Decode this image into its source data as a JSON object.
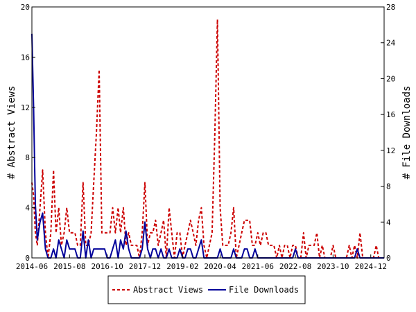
{
  "chart_data": {
    "type": "line",
    "title": "",
    "xlabel": "",
    "ylabel_left": "# Abstract Views",
    "ylabel_right": "# File Downloads",
    "x_tick_labels": [
      "2014-06",
      "2015-08",
      "2016-10",
      "2017-12",
      "2019-02",
      "2020-04",
      "2021-06",
      "2022-08",
      "2023-10",
      "2024-12"
    ],
    "x_range": [
      "2014-06",
      "2025-05"
    ],
    "y_left": {
      "range": [
        0,
        20
      ],
      "ticks": [
        "0",
        "4",
        "8",
        "12",
        "16",
        "20"
      ]
    },
    "y_right": {
      "range": [
        0,
        28
      ],
      "ticks": [
        "0",
        "4",
        "8",
        "12",
        "16",
        "20",
        "24",
        "28"
      ]
    },
    "legend": {
      "placement": "bottom-center"
    },
    "grid": false,
    "series": [
      {
        "name": "Abstract Views",
        "axis": "left",
        "color": "#cc0000",
        "style": "dashed",
        "points": [
          [
            "2014-06-01",
            6
          ],
          [
            "2014-06-20",
            5
          ],
          [
            "2014-07-10",
            2
          ],
          [
            "2014-08-01",
            1
          ],
          [
            "2014-09-01",
            4
          ],
          [
            "2014-10-01",
            7
          ],
          [
            "2014-11-01",
            2
          ],
          [
            "2014-12-01",
            0
          ],
          [
            "2015-01-01",
            2
          ],
          [
            "2015-02-01",
            7
          ],
          [
            "2015-03-01",
            2
          ],
          [
            "2015-04-01",
            4
          ],
          [
            "2015-05-01",
            1
          ],
          [
            "2015-06-01",
            2
          ],
          [
            "2015-07-01",
            4
          ],
          [
            "2015-08-01",
            2
          ],
          [
            "2015-09-01",
            2
          ],
          [
            "2015-10-01",
            2
          ],
          [
            "2015-11-01",
            1
          ],
          [
            "2015-12-01",
            1
          ],
          [
            "2016-01-01",
            6
          ],
          [
            "2016-02-01",
            1
          ],
          [
            "2016-03-01",
            1
          ],
          [
            "2016-04-01",
            2
          ],
          [
            "2016-05-01",
            6
          ],
          [
            "2016-06-01",
            10
          ],
          [
            "2016-07-01",
            15
          ],
          [
            "2016-08-01",
            2
          ],
          [
            "2016-09-01",
            2
          ],
          [
            "2016-10-01",
            2
          ],
          [
            "2016-11-01",
            2
          ],
          [
            "2016-12-01",
            4
          ],
          [
            "2017-01-01",
            2
          ],
          [
            "2017-02-01",
            4
          ],
          [
            "2017-03-01",
            2
          ],
          [
            "2017-04-01",
            4
          ],
          [
            "2017-05-01",
            1
          ],
          [
            "2017-06-01",
            2
          ],
          [
            "2017-07-01",
            1
          ],
          [
            "2017-08-01",
            1
          ],
          [
            "2017-09-01",
            1
          ],
          [
            "2017-10-01",
            0
          ],
          [
            "2017-11-01",
            2
          ],
          [
            "2017-12-01",
            6
          ],
          [
            "2018-01-01",
            1
          ],
          [
            "2018-02-01",
            2
          ],
          [
            "2018-03-01",
            2
          ],
          [
            "2018-04-01",
            3
          ],
          [
            "2018-05-01",
            1
          ],
          [
            "2018-06-01",
            2
          ],
          [
            "2018-07-01",
            3
          ],
          [
            "2018-08-01",
            0
          ],
          [
            "2018-09-01",
            4
          ],
          [
            "2018-10-01",
            2
          ],
          [
            "2018-11-01",
            0
          ],
          [
            "2018-12-01",
            2
          ],
          [
            "2019-01-01",
            2
          ],
          [
            "2019-02-01",
            0
          ],
          [
            "2019-03-01",
            1
          ],
          [
            "2019-04-01",
            2
          ],
          [
            "2019-05-01",
            3
          ],
          [
            "2019-06-01",
            2
          ],
          [
            "2019-07-01",
            1
          ],
          [
            "2019-08-01",
            3
          ],
          [
            "2019-09-01",
            4
          ],
          [
            "2019-10-01",
            1
          ],
          [
            "2019-11-01",
            0
          ],
          [
            "2019-12-01",
            1
          ],
          [
            "2020-01-01",
            2
          ],
          [
            "2020-02-01",
            10
          ],
          [
            "2020-03-01",
            19
          ],
          [
            "2020-04-01",
            4
          ],
          [
            "2020-05-01",
            1
          ],
          [
            "2020-06-01",
            1
          ],
          [
            "2020-07-01",
            1
          ],
          [
            "2020-08-01",
            2
          ],
          [
            "2020-09-01",
            4
          ],
          [
            "2020-10-01",
            0
          ],
          [
            "2020-11-01",
            1
          ],
          [
            "2020-12-01",
            2
          ],
          [
            "2021-01-01",
            3
          ],
          [
            "2021-02-01",
            3
          ],
          [
            "2021-03-01",
            3
          ],
          [
            "2021-04-01",
            1
          ],
          [
            "2021-05-01",
            1
          ],
          [
            "2021-06-01",
            2
          ],
          [
            "2021-07-01",
            1
          ],
          [
            "2021-08-01",
            2
          ],
          [
            "2021-09-01",
            2
          ],
          [
            "2021-10-01",
            1
          ],
          [
            "2021-11-01",
            1
          ],
          [
            "2021-12-01",
            1
          ],
          [
            "2022-01-01",
            0
          ],
          [
            "2022-02-01",
            1
          ],
          [
            "2022-03-01",
            0
          ],
          [
            "2022-04-01",
            1
          ],
          [
            "2022-05-01",
            1
          ],
          [
            "2022-06-01",
            0
          ],
          [
            "2022-07-01",
            1
          ],
          [
            "2022-08-01",
            1
          ],
          [
            "2022-09-01",
            0
          ],
          [
            "2022-10-01",
            0
          ],
          [
            "2022-11-01",
            2
          ],
          [
            "2022-12-01",
            0
          ],
          [
            "2023-01-01",
            1
          ],
          [
            "2023-02-01",
            1
          ],
          [
            "2023-03-01",
            1
          ],
          [
            "2023-04-01",
            2
          ],
          [
            "2023-05-01",
            0
          ],
          [
            "2023-06-01",
            1
          ],
          [
            "2023-07-01",
            0
          ],
          [
            "2023-08-01",
            0
          ],
          [
            "2023-09-01",
            0
          ],
          [
            "2023-10-01",
            1
          ],
          [
            "2023-11-01",
            0
          ],
          [
            "2023-12-01",
            0
          ],
          [
            "2024-01-01",
            0
          ],
          [
            "2024-02-01",
            0
          ],
          [
            "2024-03-01",
            0
          ],
          [
            "2024-04-01",
            1
          ],
          [
            "2024-05-01",
            0
          ],
          [
            "2024-06-01",
            1
          ],
          [
            "2024-07-01",
            0
          ],
          [
            "2024-08-01",
            2
          ],
          [
            "2024-09-01",
            0
          ],
          [
            "2024-10-01",
            0
          ],
          [
            "2024-11-01",
            0
          ],
          [
            "2024-12-01",
            0
          ],
          [
            "2025-01-01",
            0
          ],
          [
            "2025-02-01",
            1
          ],
          [
            "2025-03-01",
            0
          ],
          [
            "2025-04-01",
            0
          ],
          [
            "2025-05-01",
            0
          ]
        ]
      },
      {
        "name": "File Downloads",
        "axis": "right",
        "color": "#000099",
        "style": "solid",
        "points": [
          [
            "2014-06-01",
            25
          ],
          [
            "2014-06-20",
            17
          ],
          [
            "2014-07-10",
            6
          ],
          [
            "2014-08-01",
            2
          ],
          [
            "2014-09-01",
            4
          ],
          [
            "2014-10-01",
            5
          ],
          [
            "2014-11-01",
            1
          ],
          [
            "2014-12-01",
            0
          ],
          [
            "2015-01-01",
            0
          ],
          [
            "2015-02-01",
            1
          ],
          [
            "2015-03-01",
            0
          ],
          [
            "2015-04-01",
            2
          ],
          [
            "2015-05-01",
            1
          ],
          [
            "2015-06-01",
            0
          ],
          [
            "2015-07-01",
            2
          ],
          [
            "2015-08-01",
            1
          ],
          [
            "2015-09-01",
            1
          ],
          [
            "2015-10-01",
            1
          ],
          [
            "2015-11-01",
            0
          ],
          [
            "2015-12-01",
            0
          ],
          [
            "2016-01-01",
            3
          ],
          [
            "2016-02-01",
            0
          ],
          [
            "2016-03-01",
            2
          ],
          [
            "2016-04-01",
            0
          ],
          [
            "2016-05-01",
            1
          ],
          [
            "2016-06-01",
            1
          ],
          [
            "2016-07-01",
            1
          ],
          [
            "2016-08-01",
            1
          ],
          [
            "2016-09-01",
            1
          ],
          [
            "2016-10-01",
            0
          ],
          [
            "2016-11-01",
            0
          ],
          [
            "2016-12-01",
            1
          ],
          [
            "2017-01-01",
            2
          ],
          [
            "2017-02-01",
            0
          ],
          [
            "2017-03-01",
            2
          ],
          [
            "2017-04-01",
            1
          ],
          [
            "2017-05-01",
            3
          ],
          [
            "2017-06-01",
            1
          ],
          [
            "2017-07-01",
            0
          ],
          [
            "2017-08-01",
            0
          ],
          [
            "2017-09-01",
            0
          ],
          [
            "2017-10-01",
            0
          ],
          [
            "2017-11-01",
            1
          ],
          [
            "2017-12-01",
            4
          ],
          [
            "2018-01-01",
            1
          ],
          [
            "2018-02-01",
            0
          ],
          [
            "2018-03-01",
            1
          ],
          [
            "2018-04-01",
            1
          ],
          [
            "2018-05-01",
            0
          ],
          [
            "2018-06-01",
            1
          ],
          [
            "2018-07-01",
            0
          ],
          [
            "2018-08-01",
            0
          ],
          [
            "2018-09-01",
            1
          ],
          [
            "2018-10-01",
            0
          ],
          [
            "2018-11-01",
            0
          ],
          [
            "2018-12-01",
            0
          ],
          [
            "2019-01-01",
            1
          ],
          [
            "2019-02-01",
            0
          ],
          [
            "2019-03-01",
            0
          ],
          [
            "2019-04-01",
            1
          ],
          [
            "2019-05-01",
            1
          ],
          [
            "2019-06-01",
            0
          ],
          [
            "2019-07-01",
            0
          ],
          [
            "2019-08-01",
            1
          ],
          [
            "2019-09-01",
            2
          ],
          [
            "2019-10-01",
            0
          ],
          [
            "2019-11-01",
            0
          ],
          [
            "2019-12-01",
            0
          ],
          [
            "2020-01-01",
            0
          ],
          [
            "2020-02-01",
            0
          ],
          [
            "2020-03-01",
            0
          ],
          [
            "2020-04-01",
            1
          ],
          [
            "2020-05-01",
            0
          ],
          [
            "2020-06-01",
            0
          ],
          [
            "2020-07-01",
            0
          ],
          [
            "2020-08-01",
            0
          ],
          [
            "2020-09-01",
            1
          ],
          [
            "2020-10-01",
            0
          ],
          [
            "2020-11-01",
            0
          ],
          [
            "2020-12-01",
            0
          ],
          [
            "2021-01-01",
            1
          ],
          [
            "2021-02-01",
            1
          ],
          [
            "2021-03-01",
            0
          ],
          [
            "2021-04-01",
            0
          ],
          [
            "2021-05-01",
            1
          ],
          [
            "2021-06-01",
            0
          ],
          [
            "2021-07-01",
            0
          ],
          [
            "2021-08-01",
            0
          ],
          [
            "2021-09-01",
            0
          ],
          [
            "2021-10-01",
            0
          ],
          [
            "2021-11-01",
            0
          ],
          [
            "2021-12-01",
            0
          ],
          [
            "2022-01-01",
            0
          ],
          [
            "2022-02-01",
            0
          ],
          [
            "2022-03-01",
            0
          ],
          [
            "2022-04-01",
            0
          ],
          [
            "2022-05-01",
            0
          ],
          [
            "2022-06-01",
            0
          ],
          [
            "2022-07-01",
            0
          ],
          [
            "2022-08-01",
            1
          ],
          [
            "2022-09-01",
            0
          ],
          [
            "2022-10-01",
            0
          ],
          [
            "2022-11-01",
            0
          ],
          [
            "2022-12-01",
            0
          ],
          [
            "2023-01-01",
            0
          ],
          [
            "2023-02-01",
            0
          ],
          [
            "2023-03-01",
            0
          ],
          [
            "2023-04-01",
            0
          ],
          [
            "2023-05-01",
            0
          ],
          [
            "2023-06-01",
            0
          ],
          [
            "2023-07-01",
            0
          ],
          [
            "2023-08-01",
            0
          ],
          [
            "2023-09-01",
            0
          ],
          [
            "2023-10-01",
            0
          ],
          [
            "2023-11-01",
            0
          ],
          [
            "2023-12-01",
            0
          ],
          [
            "2024-01-01",
            0
          ],
          [
            "2024-02-01",
            0
          ],
          [
            "2024-03-01",
            0
          ],
          [
            "2024-04-01",
            0
          ],
          [
            "2024-05-01",
            0
          ],
          [
            "2024-06-01",
            0
          ],
          [
            "2024-07-01",
            1
          ],
          [
            "2024-08-01",
            0
          ],
          [
            "2024-09-01",
            0
          ],
          [
            "2024-10-01",
            0
          ],
          [
            "2024-11-01",
            0
          ],
          [
            "2024-12-01",
            0
          ],
          [
            "2025-01-01",
            0
          ],
          [
            "2025-02-01",
            0
          ],
          [
            "2025-03-01",
            0
          ],
          [
            "2025-04-01",
            0
          ],
          [
            "2025-05-01",
            0
          ]
        ]
      }
    ]
  }
}
